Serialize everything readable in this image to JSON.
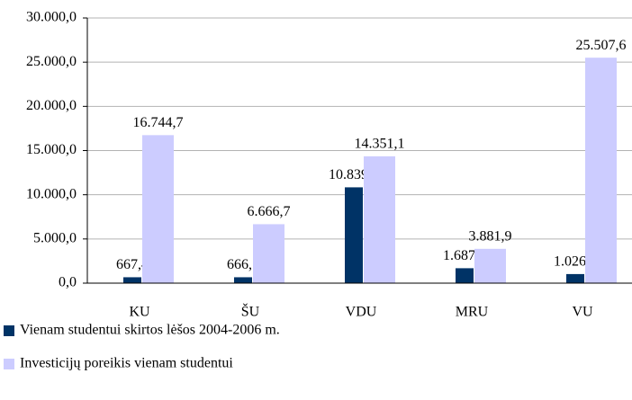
{
  "chart_data": {
    "type": "bar",
    "categories": [
      "KU",
      "ŠU",
      "VDU",
      "MRU",
      "VU"
    ],
    "series": [
      {
        "name": "Vienam studentui skirtos lėšos 2004-2006 m.",
        "color": "#003366",
        "values": [
          667.4,
          666.7,
          10839.7,
          1687.8,
          1026.7
        ],
        "value_labels": [
          "667,4",
          "666,7",
          "10.839,7",
          "1.687,8",
          "1.026,7"
        ]
      },
      {
        "name": "Investicijų poreikis vienam studentui",
        "color": "#ccccff",
        "values": [
          16744.7,
          6666.7,
          14351.1,
          3881.9,
          25507.6
        ],
        "value_labels": [
          "16.744,7",
          "6.666,7",
          "14.351,1",
          "3.881,9",
          "25.507,6"
        ]
      }
    ],
    "ylim": [
      0,
      30000
    ],
    "yticks": [
      {
        "value": 0,
        "label": "0,0"
      },
      {
        "value": 5000,
        "label": "5.000,0"
      },
      {
        "value": 10000,
        "label": "10.000,0"
      },
      {
        "value": 15000,
        "label": "15.000,0"
      },
      {
        "value": 20000,
        "label": "20.000,0"
      },
      {
        "value": 25000,
        "label": "25.000,0"
      },
      {
        "value": 30000,
        "label": "30.000,0"
      }
    ],
    "grid": true,
    "legend": "bottom"
  }
}
